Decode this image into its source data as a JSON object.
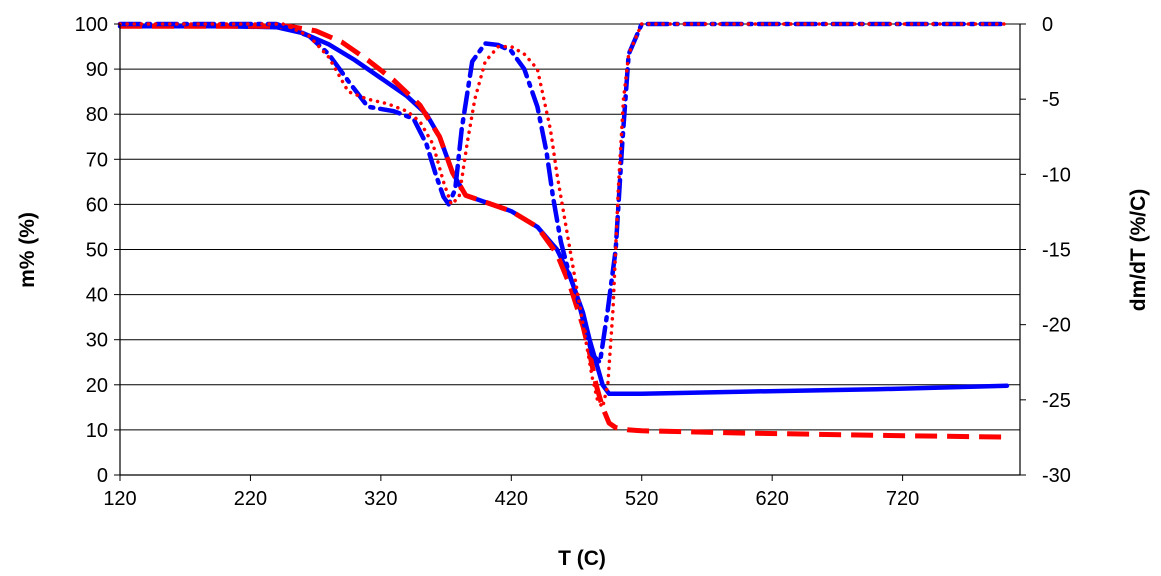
{
  "chart_data": {
    "type": "line",
    "title": "",
    "xlabel": "T (C)",
    "ylabel": "m% (%)",
    "y2label": "dm/dT (%/C)",
    "xlim": [
      120,
      810
    ],
    "ylim": [
      0,
      100
    ],
    "y2lim": [
      -30,
      0
    ],
    "xticks": [
      120,
      220,
      320,
      420,
      520,
      620,
      720
    ],
    "yticks": [
      0,
      10,
      20,
      30,
      40,
      50,
      60,
      70,
      80,
      90,
      100
    ],
    "y2ticks": [
      0,
      -5,
      -10,
      -15,
      -20,
      -25,
      -30
    ],
    "grid": "horizontal",
    "legend": "none",
    "series": [
      {
        "axis": "left",
        "color": "#0000ff",
        "style": "solid",
        "x": [
          120,
          200,
          240,
          260,
          280,
          300,
          320,
          340,
          355,
          365,
          375,
          385,
          400,
          420,
          440,
          455,
          465,
          475,
          480,
          485,
          490,
          495,
          500,
          520,
          600,
          700,
          800
        ],
        "y": [
          99.5,
          99.5,
          99.3,
          98,
          95.5,
          92,
          88,
          84,
          80,
          75,
          67,
          62,
          60.5,
          58.5,
          55,
          50,
          44,
          36,
          30,
          25,
          20,
          18,
          18,
          18,
          18.5,
          19,
          19.8
        ]
      },
      {
        "axis": "left",
        "color": "#ff0000",
        "style": "dash",
        "x": [
          120,
          250,
          270,
          290,
          310,
          330,
          350,
          365,
          375,
          385,
          400,
          420,
          440,
          455,
          465,
          475,
          480,
          485,
          490,
          495,
          500,
          510,
          520,
          600,
          700,
          800
        ],
        "y": [
          99.5,
          99.5,
          98.5,
          96,
          92,
          87.5,
          82,
          75,
          67,
          62,
          60.5,
          58.5,
          55,
          49,
          42,
          33,
          27,
          20,
          15,
          11.5,
          10.5,
          10,
          9.8,
          9.3,
          8.8,
          8.4
        ]
      },
      {
        "axis": "right",
        "color": "#0000ff",
        "style": "dashdot",
        "x": [
          120,
          240,
          265,
          280,
          295,
          310,
          330,
          345,
          355,
          362,
          368,
          372,
          377,
          382,
          390,
          400,
          410,
          420,
          430,
          440,
          447,
          452,
          458,
          464,
          470,
          476,
          482,
          488,
          494,
          500,
          505,
          510,
          520,
          550,
          800
        ],
        "y": [
          0,
          0,
          -0.8,
          -2,
          -3.8,
          -5.5,
          -5.8,
          -6.3,
          -8,
          -10,
          -11.5,
          -12,
          -11,
          -7,
          -2.5,
          -1.3,
          -1.4,
          -1.8,
          -3,
          -5.5,
          -8.5,
          -11.5,
          -14.5,
          -16.5,
          -18,
          -20,
          -22,
          -22.5,
          -19,
          -15,
          -8,
          -2,
          0,
          0,
          0
        ]
      },
      {
        "axis": "right",
        "color": "#ff0000",
        "style": "dot",
        "x": [
          120,
          245,
          265,
          280,
          295,
          310,
          325,
          340,
          350,
          360,
          368,
          374,
          380,
          386,
          392,
          400,
          410,
          420,
          430,
          440,
          445,
          450,
          455,
          460,
          465,
          470,
          474,
          478,
          482,
          486,
          490,
          494,
          498,
          502,
          506,
          510,
          520,
          600,
          800
        ],
        "y": [
          0,
          0,
          -0.8,
          -2.2,
          -4.5,
          -5,
          -5.3,
          -5.8,
          -6.5,
          -8,
          -10.5,
          -12,
          -11.5,
          -8,
          -5,
          -2.5,
          -1.5,
          -1.5,
          -2,
          -3,
          -5,
          -7,
          -10,
          -12.5,
          -15,
          -17.5,
          -19.5,
          -21.5,
          -23.5,
          -25,
          -25.5,
          -24,
          -19,
          -11,
          -5,
          -2,
          0,
          0,
          0
        ]
      }
    ]
  }
}
